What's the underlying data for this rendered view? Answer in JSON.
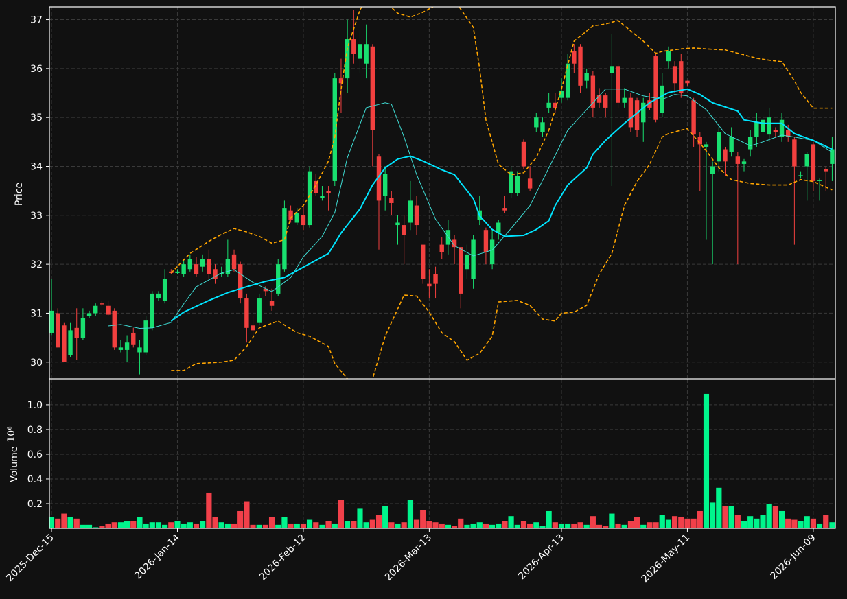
{
  "chart_data": [
    {
      "type": "candlestick",
      "ylabel": "Price",
      "ylim": [
        29.66,
        37.26
      ],
      "yticks": [
        30,
        31,
        32,
        33,
        34,
        35,
        36,
        37
      ],
      "grid": true,
      "up_color": "#19e070",
      "down_color": "#f2403f",
      "open": [
        30.6,
        31.0,
        30.75,
        30.15,
        30.7,
        30.5,
        30.95,
        31.0,
        31.2,
        31.15,
        31.05,
        30.25,
        30.25,
        30.6,
        30.2,
        30.2,
        30.7,
        31.3,
        31.25,
        31.85,
        31.82,
        31.8,
        31.9,
        32.0,
        31.95,
        32.1,
        31.9,
        31.8,
        31.8,
        32.2,
        32.0,
        31.3,
        30.75,
        30.8,
        31.5,
        31.25,
        31.4,
        31.9,
        33.1,
        32.85,
        33.0,
        32.8,
        33.7,
        33.35,
        33.5,
        33.7,
        35.8,
        35.8,
        36.6,
        36.2,
        36.1,
        36.45,
        34.2,
        33.4,
        33.35,
        32.8,
        32.8,
        32.85,
        33.2,
        32.4,
        31.6,
        31.8,
        32.4,
        32.4,
        32.5,
        32.35,
        31.9,
        31.7,
        32.9,
        32.7,
        32.0,
        32.65,
        33.15,
        33.45,
        33.45,
        34.5,
        33.75,
        34.8,
        34.7,
        35.2,
        35.3,
        35.4,
        35.4,
        36.35,
        36.45,
        35.75,
        35.85,
        35.45,
        35.45,
        35.9,
        36.05,
        35.3,
        35.4,
        35.35,
        34.9,
        35.35,
        36.25,
        35.1,
        36.15,
        36.05,
        36.15,
        35.75,
        35.35,
        34.6,
        34.4,
        33.85,
        34.1,
        34.35,
        34.3,
        34.2,
        34.05,
        34.35,
        34.6,
        34.7,
        34.65,
        34.75,
        34.6,
        34.75,
        34.55,
        33.8,
        34.0,
        34.45,
        33.7,
        33.95,
        34.05
      ],
      "high": [
        31.7,
        31.1,
        30.8,
        30.8,
        31.1,
        31.1,
        31.05,
        31.2,
        31.25,
        31.25,
        31.1,
        30.45,
        30.55,
        30.7,
        30.45,
        30.95,
        31.45,
        31.45,
        31.9,
        31.9,
        31.9,
        32.1,
        32.2,
        32.15,
        32.2,
        32.3,
        32.0,
        31.95,
        32.5,
        32.3,
        32.05,
        31.4,
        30.95,
        31.4,
        31.55,
        31.5,
        32.1,
        33.3,
        33.2,
        33.15,
        33.2,
        34.0,
        33.85,
        33.6,
        33.6,
        35.9,
        36.2,
        37.0,
        37.2,
        36.8,
        36.9,
        36.5,
        34.25,
        34.0,
        33.5,
        33.0,
        33.0,
        33.7,
        33.4,
        32.4,
        31.9,
        31.95,
        32.55,
        32.9,
        32.6,
        32.35,
        32.4,
        32.6,
        33.4,
        32.75,
        32.7,
        32.9,
        33.4,
        34.0,
        33.9,
        34.55,
        34.0,
        35.1,
        35.0,
        35.5,
        35.5,
        35.8,
        36.3,
        36.5,
        36.5,
        36.0,
        35.95,
        35.6,
        35.5,
        36.7,
        36.1,
        35.6,
        35.5,
        35.4,
        35.4,
        35.5,
        36.3,
        35.9,
        36.45,
        36.15,
        36.3,
        35.75,
        35.4,
        34.7,
        34.5,
        34.1,
        34.8,
        34.4,
        34.8,
        34.3,
        34.15,
        34.75,
        35.1,
        35.05,
        35.2,
        34.8,
        35.1,
        34.85,
        34.6,
        33.9,
        34.3,
        34.5,
        33.75,
        34.0,
        34.6
      ],
      "low": [
        30.55,
        30.3,
        30.0,
        30.1,
        30.05,
        30.45,
        30.9,
        30.95,
        31.15,
        30.95,
        30.25,
        30.2,
        30.0,
        30.3,
        29.75,
        30.15,
        30.65,
        31.25,
        31.2,
        31.8,
        31.8,
        31.75,
        31.85,
        31.75,
        31.85,
        31.7,
        31.6,
        31.75,
        31.75,
        31.85,
        31.2,
        30.4,
        30.5,
        30.75,
        31.35,
        31.05,
        31.35,
        31.85,
        32.85,
        32.8,
        32.7,
        32.75,
        33.4,
        33.3,
        33.1,
        33.6,
        35.1,
        35.5,
        36.1,
        35.9,
        35.8,
        34.0,
        32.3,
        33.1,
        33.0,
        32.4,
        32.0,
        32.7,
        32.6,
        31.6,
        31.3,
        31.3,
        32.1,
        32.2,
        32.0,
        31.1,
        31.7,
        31.5,
        32.8,
        32.0,
        31.9,
        32.5,
        33.05,
        33.35,
        33.4,
        33.95,
        33.5,
        34.7,
        34.6,
        35.1,
        35.1,
        35.3,
        35.35,
        35.9,
        35.5,
        35.6,
        35.0,
        35.2,
        35.0,
        33.6,
        35.2,
        35.2,
        34.7,
        34.6,
        34.5,
        35.15,
        34.9,
        35.0,
        36.0,
        35.5,
        35.4,
        35.65,
        34.4,
        33.5,
        32.5,
        32.0,
        33.9,
        33.8,
        34.2,
        32.0,
        33.9,
        34.2,
        34.4,
        34.5,
        34.5,
        34.6,
        34.5,
        34.5,
        32.4,
        33.75,
        33.3,
        33.5,
        33.3,
        33.5,
        33.7
      ],
      "close": [
        31.05,
        30.3,
        30.0,
        30.65,
        30.5,
        30.9,
        31.0,
        31.15,
        31.18,
        30.97,
        30.3,
        30.3,
        30.4,
        30.35,
        30.3,
        30.85,
        31.4,
        31.4,
        31.7,
        31.82,
        31.85,
        32.0,
        32.1,
        31.8,
        32.1,
        31.8,
        31.7,
        31.82,
        32.1,
        31.9,
        31.3,
        30.7,
        30.65,
        31.3,
        31.45,
        31.15,
        32.0,
        33.15,
        32.9,
        33.05,
        32.8,
        33.9,
        33.45,
        33.4,
        33.45,
        35.8,
        35.7,
        36.6,
        36.3,
        36.5,
        36.5,
        34.75,
        33.3,
        33.85,
        33.25,
        32.85,
        32.6,
        33.3,
        32.8,
        31.7,
        31.55,
        31.6,
        32.25,
        32.7,
        32.35,
        31.4,
        32.2,
        32.5,
        33.1,
        32.25,
        32.5,
        32.85,
        33.1,
        33.9,
        33.8,
        34.0,
        33.55,
        35.0,
        34.9,
        35.3,
        35.2,
        35.55,
        36.1,
        36.1,
        35.65,
        35.9,
        35.2,
        35.3,
        35.2,
        36.05,
        35.3,
        35.4,
        34.8,
        34.75,
        35.3,
        35.2,
        34.95,
        35.65,
        36.35,
        35.7,
        35.5,
        35.7,
        34.65,
        34.45,
        34.45,
        34.0,
        34.7,
        34.1,
        34.6,
        34.05,
        34.1,
        34.6,
        34.9,
        34.95,
        35.0,
        34.7,
        34.95,
        34.6,
        34.0,
        33.82,
        34.25,
        33.7,
        33.72,
        33.9,
        34.35
      ],
      "overlays": [
        {
          "color": "#3fdcd4",
          "width": 1,
          "dash": false,
          "x": [
            9,
            11,
            14,
            16,
            19,
            21,
            23,
            27,
            29,
            32,
            35,
            38,
            40,
            43,
            45,
            47,
            50,
            53,
            54,
            56,
            58,
            61,
            64,
            67,
            70,
            73,
            76,
            79,
            82,
            86,
            88,
            91,
            94,
            97,
            99,
            101,
            104,
            107,
            111,
            113,
            116,
            118,
            121,
            124
          ],
          "values": [
            30.74,
            30.77,
            30.69,
            30.7,
            30.81,
            31.19,
            31.54,
            31.82,
            31.89,
            31.63,
            31.44,
            31.73,
            32.15,
            32.57,
            33.06,
            34.18,
            35.2,
            35.3,
            35.27,
            34.6,
            33.83,
            32.92,
            32.38,
            32.17,
            32.29,
            32.73,
            33.2,
            33.97,
            34.74,
            35.3,
            35.58,
            35.58,
            35.44,
            35.37,
            35.47,
            35.44,
            35.16,
            34.67,
            34.42,
            34.5,
            34.64,
            34.6,
            34.53,
            34.29
          ]
        },
        {
          "color": "#00e5ff",
          "width": 2,
          "dash": false,
          "x": [
            19,
            21,
            25,
            28,
            31,
            34,
            37,
            40,
            44,
            46,
            49,
            51,
            53,
            55,
            57,
            59,
            62,
            64,
            67,
            68,
            70,
            72,
            75,
            77,
            79,
            80,
            82,
            85,
            86,
            88,
            91,
            93,
            95,
            98,
            101,
            103,
            105,
            109,
            110,
            113,
            116,
            118,
            121,
            124
          ],
          "values": [
            30.84,
            31.02,
            31.26,
            31.42,
            31.54,
            31.65,
            31.73,
            31.94,
            32.22,
            32.64,
            33.13,
            33.62,
            33.97,
            34.15,
            34.21,
            34.11,
            33.93,
            33.83,
            33.34,
            32.99,
            32.71,
            32.57,
            32.59,
            32.71,
            32.89,
            33.2,
            33.62,
            33.97,
            34.25,
            34.53,
            34.88,
            35.09,
            35.3,
            35.51,
            35.58,
            35.47,
            35.3,
            35.13,
            34.95,
            34.88,
            34.88,
            34.67,
            34.53,
            34.35
          ]
        },
        {
          "color": "#ffa500",
          "width": 1.6,
          "dash": true,
          "x": [
            19,
            22,
            25,
            27,
            29,
            31,
            33,
            35,
            37,
            38,
            40,
            42,
            44,
            45,
            46,
            47,
            49,
            51,
            55,
            57,
            59,
            61,
            64,
            67,
            68,
            69,
            71,
            73,
            75,
            77,
            79,
            81,
            83,
            86,
            88,
            90,
            92,
            94,
            96,
            97,
            100,
            102,
            104,
            107,
            110,
            112,
            114,
            116,
            118,
            119,
            121,
            124
          ],
          "values": [
            31.82,
            32.22,
            32.47,
            32.61,
            32.73,
            32.66,
            32.57,
            32.43,
            32.5,
            32.95,
            33.2,
            33.62,
            34.11,
            34.6,
            35.58,
            36.42,
            37.2,
            37.6,
            37.13,
            37.05,
            37.15,
            37.29,
            37.4,
            36.84,
            36.0,
            34.95,
            34.04,
            33.83,
            33.87,
            34.18,
            34.74,
            35.58,
            36.56,
            36.87,
            36.91,
            36.98,
            36.77,
            36.56,
            36.31,
            36.35,
            36.4,
            36.42,
            36.4,
            36.38,
            36.28,
            36.21,
            36.17,
            36.14,
            35.75,
            35.51,
            35.19,
            35.19
          ]
        },
        {
          "color": "#ffa500",
          "width": 1.6,
          "dash": true,
          "x": [
            19,
            21,
            23,
            27,
            29,
            31,
            33,
            36,
            39,
            41,
            44,
            45,
            47,
            49,
            51,
            53,
            56,
            58,
            60,
            62,
            64,
            66,
            68,
            70,
            71,
            74,
            76,
            78,
            80,
            81,
            83,
            85,
            87,
            89,
            91,
            93,
            95,
            97,
            98,
            100,
            101,
            104,
            106,
            108,
            111,
            114,
            117,
            119,
            121,
            124
          ],
          "values": [
            29.83,
            29.83,
            29.97,
            30.0,
            30.04,
            30.32,
            30.7,
            30.84,
            30.6,
            30.53,
            30.32,
            29.97,
            29.66,
            29.41,
            29.66,
            30.53,
            31.37,
            31.35,
            31.02,
            30.6,
            30.42,
            30.04,
            30.18,
            30.53,
            31.23,
            31.26,
            31.16,
            30.88,
            30.84,
            31.0,
            31.02,
            31.16,
            31.8,
            32.22,
            33.2,
            33.69,
            34.04,
            34.6,
            34.67,
            34.74,
            34.77,
            34.32,
            33.97,
            33.73,
            33.65,
            33.62,
            33.62,
            33.73,
            33.69,
            33.52
          ]
        }
      ]
    },
    {
      "type": "bar",
      "ylabel": "Volume",
      "offset_label": "10⁶",
      "ylim": [
        0,
        1.205
      ],
      "yticks": [
        0.2,
        0.4,
        0.6,
        0.8,
        {
          "value": 1,
          "label": "1.0"
        }
      ],
      "grid": true,
      "up_color": "#00f58c",
      "down_color": "#f2404a",
      "xlim": [
        -0.33,
        124.5
      ],
      "xticks": [
        {
          "value": 0,
          "label": "2025-Dec-15"
        },
        {
          "value": 20,
          "label": "2026-Jan-14"
        },
        {
          "value": 40,
          "label": "2026-Feb-12"
        },
        {
          "value": 60,
          "label": "2026-Mar-13"
        },
        {
          "value": 81,
          "label": "2026-Apr-13"
        },
        {
          "value": 101,
          "label": "2026-May-11"
        },
        {
          "value": 121,
          "label": "2026-Jun-09"
        }
      ],
      "values": [
        0.09,
        0.08,
        0.12,
        0.09,
        0.08,
        0.03,
        0.03,
        0.01,
        0.02,
        0.04,
        0.05,
        0.05,
        0.06,
        0.06,
        0.09,
        0.04,
        0.05,
        0.05,
        0.03,
        0.05,
        0.06,
        0.04,
        0.05,
        0.04,
        0.06,
        0.29,
        0.09,
        0.05,
        0.04,
        0.04,
        0.14,
        0.22,
        0.03,
        0.03,
        0.03,
        0.09,
        0.03,
        0.09,
        0.04,
        0.04,
        0.04,
        0.07,
        0.05,
        0.03,
        0.06,
        0.04,
        0.23,
        0.06,
        0.06,
        0.16,
        0.05,
        0.07,
        0.11,
        0.18,
        0.05,
        0.04,
        0.05,
        0.23,
        0.07,
        0.15,
        0.06,
        0.05,
        0.04,
        0.03,
        0.02,
        0.08,
        0.03,
        0.04,
        0.05,
        0.04,
        0.03,
        0.04,
        0.06,
        0.1,
        0.03,
        0.06,
        0.04,
        0.05,
        0.02,
        0.14,
        0.05,
        0.04,
        0.04,
        0.04,
        0.05,
        0.03,
        0.1,
        0.03,
        0.02,
        0.12,
        0.04,
        0.03,
        0.06,
        0.09,
        0.03,
        0.05,
        0.05,
        0.11,
        0.07,
        0.1,
        0.09,
        0.08,
        0.08,
        0.14,
        1.09,
        0.21,
        0.33,
        0.18,
        0.18,
        0.11,
        0.06,
        0.1,
        0.08,
        0.11,
        0.2,
        0.18,
        0.14,
        0.08,
        0.07,
        0.06,
        0.1,
        0.08,
        0.04,
        0.11,
        0.05
      ]
    }
  ]
}
